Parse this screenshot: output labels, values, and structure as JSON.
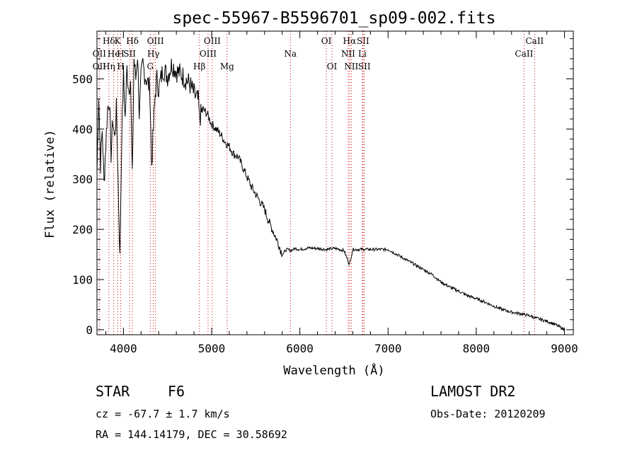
{
  "chart_data": {
    "type": "line",
    "title": "spec-55967-B5596701_sp09-002.fits",
    "xlabel": "Wavelength (Å)",
    "ylabel": "Flux (relative)",
    "xlim": [
      3700,
      9100
    ],
    "ylim": [
      -10,
      595
    ],
    "xticks": [
      4000,
      5000,
      6000,
      7000,
      8000,
      9000
    ],
    "yticks": [
      0,
      100,
      200,
      300,
      400,
      500
    ],
    "series": [
      {
        "name": "flux",
        "x": [
          3700,
          3720,
          3740,
          3760,
          3780,
          3800,
          3820,
          3840,
          3860,
          3880,
          3900,
          3920,
          3940,
          3960,
          3980,
          4000,
          4020,
          4040,
          4060,
          4080,
          4100,
          4120,
          4140,
          4160,
          4180,
          4200,
          4220,
          4240,
          4260,
          4280,
          4300,
          4320,
          4340,
          4360,
          4380,
          4400,
          4450,
          4500,
          4550,
          4600,
          4650,
          4700,
          4750,
          4800,
          4850,
          4861,
          4900,
          4950,
          5000,
          5050,
          5100,
          5150,
          5200,
          5250,
          5300,
          5350,
          5400,
          5450,
          5500,
          5550,
          5600,
          5650,
          5700,
          5750,
          5800,
          5850,
          5900,
          5950,
          6000,
          6100,
          6200,
          6300,
          6400,
          6500,
          6563,
          6600,
          6700,
          6800,
          6900,
          7000,
          7100,
          7200,
          7300,
          7400,
          7500,
          7600,
          7700,
          7800,
          7900,
          8000,
          8100,
          8200,
          8300,
          8400,
          8500,
          8600,
          8700,
          8800,
          8900,
          8950,
          9000
        ],
        "y": [
          310,
          470,
          330,
          400,
          290,
          370,
          440,
          460,
          350,
          420,
          380,
          440,
          300,
          140,
          380,
          510,
          420,
          520,
          480,
          500,
          300,
          540,
          500,
          550,
          430,
          500,
          530,
          510,
          500,
          490,
          480,
          330,
          400,
          470,
          500,
          480,
          520,
          505,
          530,
          515,
          510,
          500,
          490,
          470,
          455,
          420,
          440,
          430,
          410,
          400,
          390,
          375,
          365,
          350,
          345,
          325,
          305,
          285,
          270,
          255,
          240,
          215,
          195,
          175,
          150,
          160,
          158,
          162,
          160,
          163,
          162,
          160,
          162,
          158,
          130,
          160,
          160,
          160,
          160,
          160,
          150,
          140,
          130,
          120,
          110,
          95,
          85,
          77,
          68,
          62,
          55,
          47,
          40,
          35,
          32,
          28,
          22,
          17,
          10,
          5,
          0
        ]
      }
    ],
    "line_markers": [
      {
        "label": "Hδ",
        "x": 3835,
        "row": "top"
      },
      {
        "label": "K",
        "x": 3934,
        "row": "top"
      },
      {
        "label": "Hδ",
        "x": 4102,
        "row": "top"
      },
      {
        "label": "OIII",
        "x": 4363,
        "row": "top"
      },
      {
        "label": "OIII",
        "x": 5007,
        "row": "top"
      },
      {
        "label": "OI",
        "x": 6300,
        "row": "top"
      },
      {
        "label": "Hα",
        "x": 6563,
        "row": "top"
      },
      {
        "label": "SII",
        "x": 6716,
        "row": "top"
      },
      {
        "label": "CaII",
        "x": 8662,
        "row": "top"
      },
      {
        "label": "OII",
        "x": 3727,
        "row": "mid"
      },
      {
        "label": "He",
        "x": 3889,
        "row": "mid"
      },
      {
        "label": "H",
        "x": 3969,
        "row": "mid"
      },
      {
        "label": "SII",
        "x": 4070,
        "row": "mid"
      },
      {
        "label": "Hγ",
        "x": 4340,
        "row": "mid"
      },
      {
        "label": "OIII",
        "x": 4959,
        "row": "mid"
      },
      {
        "label": "Na",
        "x": 5893,
        "row": "mid"
      },
      {
        "label": "NII",
        "x": 6548,
        "row": "mid"
      },
      {
        "label": "Li",
        "x": 6708,
        "row": "mid"
      },
      {
        "label": "CaII",
        "x": 8542,
        "row": "mid"
      },
      {
        "label": "OII",
        "x": 3727,
        "row": "bot"
      },
      {
        "label": "Hη",
        "x": 3835,
        "row": "bot"
      },
      {
        "label": "H",
        "x": 3970,
        "row": "bot"
      },
      {
        "label": "G",
        "x": 4304,
        "row": "bot"
      },
      {
        "label": "Hβ",
        "x": 4861,
        "row": "bot"
      },
      {
        "label": "Mg",
        "x": 5175,
        "row": "bot"
      },
      {
        "label": "OI",
        "x": 6364,
        "row": "bot"
      },
      {
        "label": "NII",
        "x": 6583,
        "row": "bot"
      },
      {
        "label": "SII",
        "x": 6731,
        "row": "bot"
      }
    ]
  },
  "info": {
    "object_class": "STAR",
    "subclass": "F6",
    "survey": "LAMOST DR2",
    "cz": "cz = -67.7 ± 1.7 km/s",
    "obs_date": "Obs-Date: 20120209",
    "coords": "RA = 144.14179, DEC =  30.58692"
  }
}
